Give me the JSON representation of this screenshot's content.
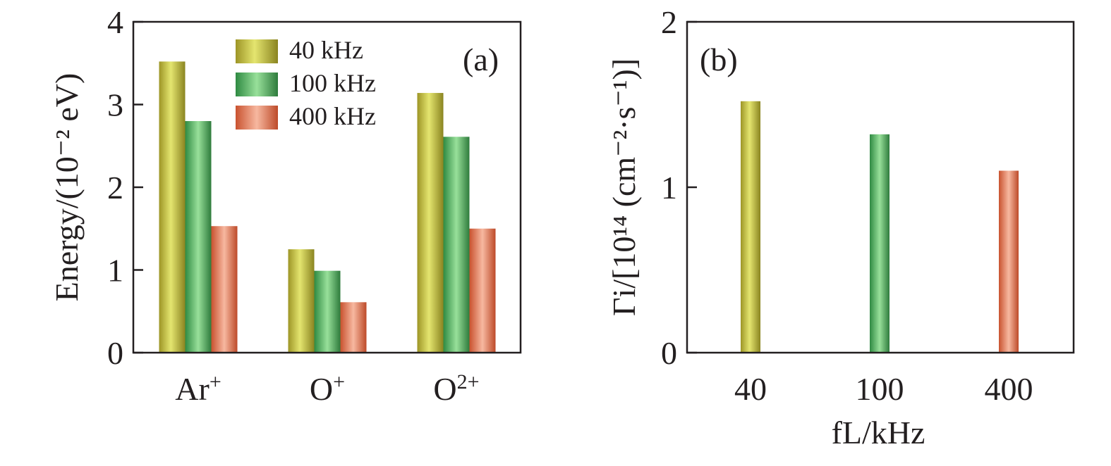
{
  "chart_data": [
    {
      "type": "bar",
      "panel_label": "(a)",
      "ylabel": "Energy/(10⁻² eV)",
      "ylim": [
        0,
        4
      ],
      "yticks": [
        "0",
        "1",
        "2",
        "3",
        "4"
      ],
      "categories": [
        {
          "base": "Ar",
          "sup": "+"
        },
        {
          "base": "O",
          "sup": "+"
        },
        {
          "base": "O",
          "sup": "2+"
        }
      ],
      "series": [
        {
          "name": "40 kHz",
          "values": [
            3.52,
            1.25,
            3.14
          ]
        },
        {
          "name": "100 kHz",
          "values": [
            2.8,
            0.99,
            2.61
          ]
        },
        {
          "name": "400 kHz",
          "values": [
            1.53,
            0.61,
            1.5
          ]
        }
      ],
      "legend_position": "top-center"
    },
    {
      "type": "bar",
      "panel_label": "(b)",
      "ylabel": "Γi/[10¹⁴ (cm⁻²·s⁻¹)]",
      "ylim": [
        0,
        2
      ],
      "yticks": [
        "0",
        "1",
        "2"
      ],
      "xlabel": "fL/kHz",
      "categories": [
        "40",
        "100",
        "400"
      ],
      "values": [
        1.52,
        1.32,
        1.1
      ]
    }
  ],
  "colors": {
    "series_40": [
      "#b3a82e",
      "#e2e36b",
      "#8f8a1f"
    ],
    "series_100": [
      "#3f9a4f",
      "#95de96",
      "#2f7f3e"
    ],
    "series_400": [
      "#d9643e",
      "#f6b49a",
      "#c04f2c"
    ],
    "axis": "#231f20"
  }
}
